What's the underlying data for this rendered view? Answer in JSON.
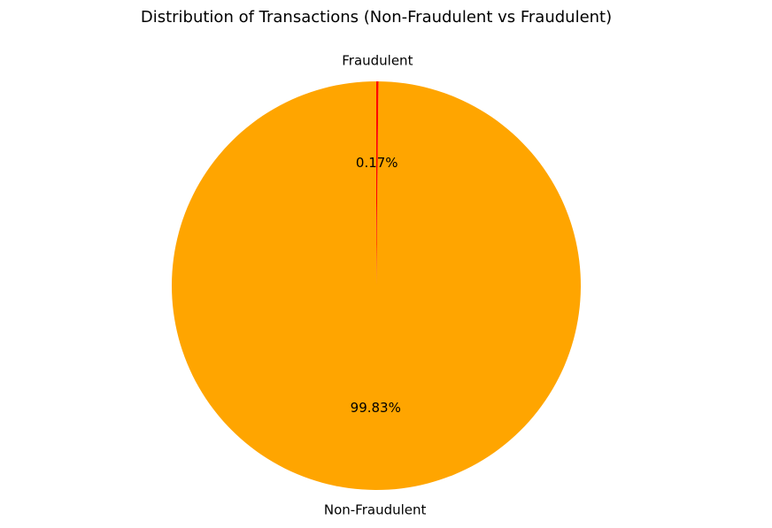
{
  "chart_data": {
    "type": "pie",
    "title": "Distribution of Transactions (Non-Fraudulent vs Fraudulent)",
    "slices": [
      {
        "label": "Non-Fraudulent",
        "value": 99.83,
        "pct_label": "99.83%",
        "color": "#FFA500"
      },
      {
        "label": "Fraudulent",
        "value": 0.17,
        "pct_label": "0.17%",
        "color": "#FF0000"
      }
    ],
    "start_angle_deg": 90,
    "direction": "counterclockwise"
  }
}
